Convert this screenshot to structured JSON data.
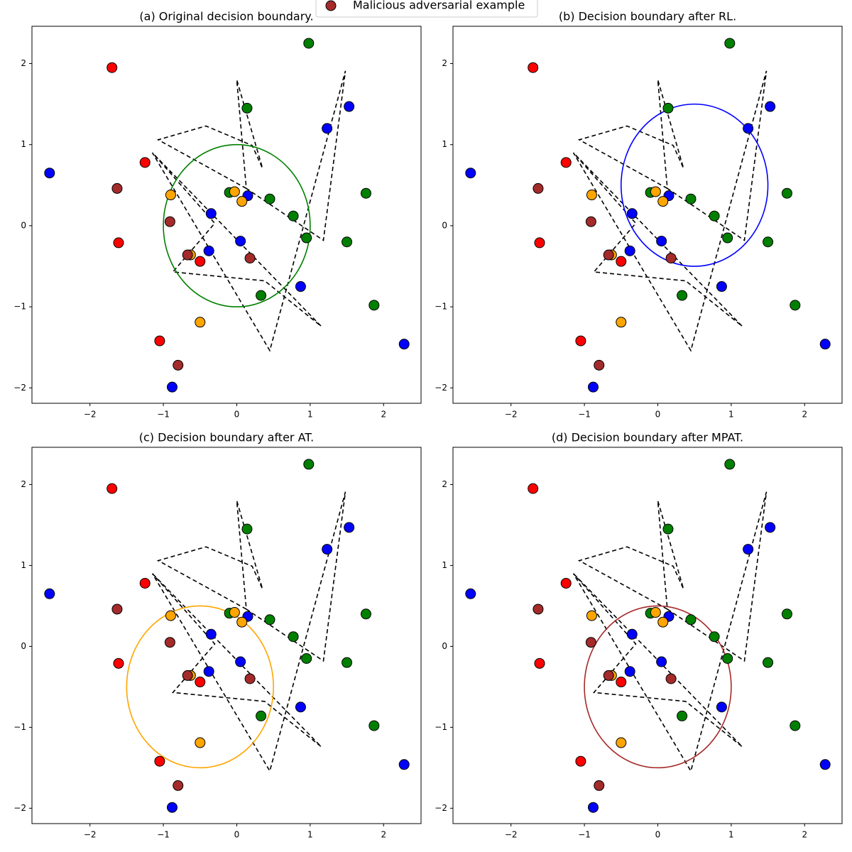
{
  "chart_data": [
    {
      "type": "scatter",
      "title": "(a) Original decision boundary.",
      "legend_loc": "upper center",
      "xlim": [
        -2.79,
        2.51
      ],
      "ylim": [
        -2.19,
        2.46
      ],
      "xticks": [
        {
          "value": -2,
          "label": "−2"
        },
        {
          "value": -1,
          "label": "−1"
        },
        0,
        1,
        2
      ],
      "yticks": [
        {
          "value": -2,
          "label": "−2"
        },
        {
          "value": -1,
          "label": "−1"
        },
        0,
        1,
        2
      ],
      "series": [
        {
          "color": "#0000ff",
          "x": [
            -2.55,
            1.23,
            1.53,
            0.15,
            -0.35,
            -0.38,
            0.05,
            0.87,
            2.28,
            -0.88
          ],
          "y": [
            0.65,
            1.2,
            1.47,
            0.37,
            0.15,
            -0.31,
            -0.19,
            -0.75,
            -1.46,
            -1.99
          ]
        },
        {
          "color": "#008000",
          "x": [
            0.98,
            0.14,
            -0.1,
            0.45,
            0.77,
            0.95,
            1.5,
            1.76,
            1.87,
            0.33
          ],
          "y": [
            2.25,
            1.45,
            0.41,
            0.33,
            0.12,
            -0.15,
            -0.2,
            0.4,
            -0.98,
            -0.86
          ]
        },
        {
          "color": "#ff0000",
          "x": [
            -1.7,
            -1.25,
            -1.61,
            -0.5,
            -1.05
          ],
          "y": [
            1.95,
            0.78,
            -0.21,
            -0.44,
            -1.42
          ]
        },
        {
          "color": "#ffa500",
          "x": [
            -0.03,
            0.07,
            -0.9,
            -0.63,
            -0.5
          ],
          "y": [
            0.42,
            0.3,
            0.38,
            -0.36,
            -1.19
          ]
        },
        {
          "name": "Malicious adversarial example",
          "color": "#a52a2a",
          "x": [
            -1.63,
            -0.91,
            -0.67,
            0.18,
            -0.8
          ],
          "y": [
            0.46,
            0.05,
            -0.36,
            -0.4,
            -1.72
          ]
        }
      ],
      "boundary": {
        "color": "#000000",
        "x": [
          0.13,
          -1.07,
          -0.42,
          0.21,
          0.35,
          0,
          0.13,
          1.18,
          1.48,
          0.45,
          -1.15,
          -0.3,
          -0.87,
          0.38,
          1.15,
          -1.15
        ],
        "y": [
          0.46,
          1.06,
          1.23,
          0.99,
          0.71,
          1.8,
          0.46,
          -0.18,
          1.91,
          -1.54,
          0.9,
          0.03,
          -0.57,
          -0.68,
          -1.24,
          0.9
        ]
      },
      "circle": {
        "color": "#008000",
        "center": [
          0,
          0
        ],
        "radius": 1
      }
    },
    {
      "type": "scatter",
      "title": "(b) Decision boundary after RL.",
      "xlim": [
        -2.79,
        2.51
      ],
      "ylim": [
        -2.19,
        2.46
      ],
      "xticks": [
        {
          "value": -2,
          "label": "−2"
        },
        {
          "value": -1,
          "label": "−1"
        },
        0,
        1,
        2
      ],
      "yticks": [
        {
          "value": -2,
          "label": "−2"
        },
        {
          "value": -1,
          "label": "−1"
        },
        0,
        1,
        2
      ],
      "series": [
        {
          "color": "#0000ff",
          "x": [
            -2.55,
            1.23,
            1.53,
            0.15,
            -0.35,
            -0.38,
            0.05,
            0.87,
            2.28,
            -0.88
          ],
          "y": [
            0.65,
            1.2,
            1.47,
            0.37,
            0.15,
            -0.31,
            -0.19,
            -0.75,
            -1.46,
            -1.99
          ]
        },
        {
          "color": "#008000",
          "x": [
            0.98,
            0.14,
            -0.1,
            0.45,
            0.77,
            0.95,
            1.5,
            1.76,
            1.87,
            0.33
          ],
          "y": [
            2.25,
            1.45,
            0.41,
            0.33,
            0.12,
            -0.15,
            -0.2,
            0.4,
            -0.98,
            -0.86
          ]
        },
        {
          "color": "#ff0000",
          "x": [
            -1.7,
            -1.25,
            -1.61,
            -0.5,
            -1.05
          ],
          "y": [
            1.95,
            0.78,
            -0.21,
            -0.44,
            -1.42
          ]
        },
        {
          "color": "#ffa500",
          "x": [
            -0.03,
            0.07,
            -0.9,
            -0.63,
            -0.5
          ],
          "y": [
            0.42,
            0.3,
            0.38,
            -0.36,
            -1.19
          ]
        },
        {
          "color": "#a52a2a",
          "x": [
            -1.63,
            -0.91,
            -0.67,
            0.18,
            -0.8
          ],
          "y": [
            0.46,
            0.05,
            -0.36,
            -0.4,
            -1.72
          ]
        }
      ],
      "boundary": {
        "color": "#000000",
        "x": [
          0.13,
          -1.07,
          -0.42,
          0.21,
          0.35,
          0,
          0.13,
          1.18,
          1.48,
          0.45,
          -1.15,
          -0.3,
          -0.87,
          0.38,
          1.15,
          -1.15
        ],
        "y": [
          0.46,
          1.06,
          1.23,
          0.99,
          0.71,
          1.8,
          0.46,
          -0.18,
          1.91,
          -1.54,
          0.9,
          0.03,
          -0.57,
          -0.68,
          -1.24,
          0.9
        ]
      },
      "circle": {
        "color": "#0000ff",
        "center": [
          0.5,
          0.5
        ],
        "radius": 1
      }
    },
    {
      "type": "scatter",
      "title": "(c) Decision boundary after AT.",
      "xlim": [
        -2.79,
        2.51
      ],
      "ylim": [
        -2.19,
        2.46
      ],
      "xticks": [
        {
          "value": -2,
          "label": "−2"
        },
        {
          "value": -1,
          "label": "−1"
        },
        0,
        1,
        2
      ],
      "yticks": [
        {
          "value": -2,
          "label": "−2"
        },
        {
          "value": -1,
          "label": "−1"
        },
        0,
        1,
        2
      ],
      "series": [
        {
          "color": "#0000ff",
          "x": [
            -2.55,
            1.23,
            1.53,
            0.15,
            -0.35,
            -0.38,
            0.05,
            0.87,
            2.28,
            -0.88
          ],
          "y": [
            0.65,
            1.2,
            1.47,
            0.37,
            0.15,
            -0.31,
            -0.19,
            -0.75,
            -1.46,
            -1.99
          ]
        },
        {
          "color": "#008000",
          "x": [
            0.98,
            0.14,
            -0.1,
            0.45,
            0.77,
            0.95,
            1.5,
            1.76,
            1.87,
            0.33
          ],
          "y": [
            2.25,
            1.45,
            0.41,
            0.33,
            0.12,
            -0.15,
            -0.2,
            0.4,
            -0.98,
            -0.86
          ]
        },
        {
          "color": "#ff0000",
          "x": [
            -1.7,
            -1.25,
            -1.61,
            -0.5,
            -1.05
          ],
          "y": [
            1.95,
            0.78,
            -0.21,
            -0.44,
            -1.42
          ]
        },
        {
          "color": "#ffa500",
          "x": [
            -0.03,
            0.07,
            -0.9,
            -0.63,
            -0.5
          ],
          "y": [
            0.42,
            0.3,
            0.38,
            -0.36,
            -1.19
          ]
        },
        {
          "color": "#a52a2a",
          "x": [
            -1.63,
            -0.91,
            -0.67,
            0.18,
            -0.8
          ],
          "y": [
            0.46,
            0.05,
            -0.36,
            -0.4,
            -1.72
          ]
        }
      ],
      "boundary": {
        "color": "#000000",
        "x": [
          0.13,
          -1.07,
          -0.42,
          0.21,
          0.35,
          0,
          0.13,
          1.18,
          1.48,
          0.45,
          -1.15,
          -0.3,
          -0.87,
          0.38,
          1.15,
          -1.15
        ],
        "y": [
          0.46,
          1.06,
          1.23,
          0.99,
          0.71,
          1.8,
          0.46,
          -0.18,
          1.91,
          -1.54,
          0.9,
          0.03,
          -0.57,
          -0.68,
          -1.24,
          0.9
        ]
      },
      "circle": {
        "color": "#ffa500",
        "center": [
          -0.5,
          -0.5
        ],
        "radius": 1
      }
    },
    {
      "type": "scatter",
      "title": "(d) Decision boundary after MPAT.",
      "xlim": [
        -2.79,
        2.51
      ],
      "ylim": [
        -2.19,
        2.46
      ],
      "xticks": [
        {
          "value": -2,
          "label": "−2"
        },
        {
          "value": -1,
          "label": "−1"
        },
        0,
        1,
        2
      ],
      "yticks": [
        {
          "value": -2,
          "label": "−2"
        },
        {
          "value": -1,
          "label": "−1"
        },
        0,
        1,
        2
      ],
      "series": [
        {
          "color": "#0000ff",
          "x": [
            -2.55,
            1.23,
            1.53,
            0.15,
            -0.35,
            -0.38,
            0.05,
            0.87,
            2.28,
            -0.88
          ],
          "y": [
            0.65,
            1.2,
            1.47,
            0.37,
            0.15,
            -0.31,
            -0.19,
            -0.75,
            -1.46,
            -1.99
          ]
        },
        {
          "color": "#008000",
          "x": [
            0.98,
            0.14,
            -0.1,
            0.45,
            0.77,
            0.95,
            1.5,
            1.76,
            1.87,
            0.33
          ],
          "y": [
            2.25,
            1.45,
            0.41,
            0.33,
            0.12,
            -0.15,
            -0.2,
            0.4,
            -0.98,
            -0.86
          ]
        },
        {
          "color": "#ff0000",
          "x": [
            -1.7,
            -1.25,
            -1.61,
            -0.5,
            -1.05
          ],
          "y": [
            1.95,
            0.78,
            -0.21,
            -0.44,
            -1.42
          ]
        },
        {
          "color": "#ffa500",
          "x": [
            -0.03,
            0.07,
            -0.9,
            -0.63,
            -0.5
          ],
          "y": [
            0.42,
            0.3,
            0.38,
            -0.36,
            -1.19
          ]
        },
        {
          "color": "#a52a2a",
          "x": [
            -1.63,
            -0.91,
            -0.67,
            0.18,
            -0.8
          ],
          "y": [
            0.46,
            0.05,
            -0.36,
            -0.4,
            -1.72
          ]
        }
      ],
      "boundary": {
        "color": "#000000",
        "x": [
          0.13,
          -1.07,
          -0.42,
          0.21,
          0.35,
          0,
          0.13,
          1.18,
          1.48,
          0.45,
          -1.15,
          -0.3,
          -0.87,
          0.38,
          1.15,
          -1.15
        ],
        "y": [
          0.46,
          1.06,
          1.23,
          0.99,
          0.71,
          1.8,
          0.46,
          -0.18,
          1.91,
          -1.54,
          0.9,
          0.03,
          -0.57,
          -0.68,
          -1.24,
          0.9
        ]
      },
      "circle": {
        "color": "#a52a2a",
        "center": [
          0,
          -0.5
        ],
        "radius": 1
      }
    }
  ]
}
